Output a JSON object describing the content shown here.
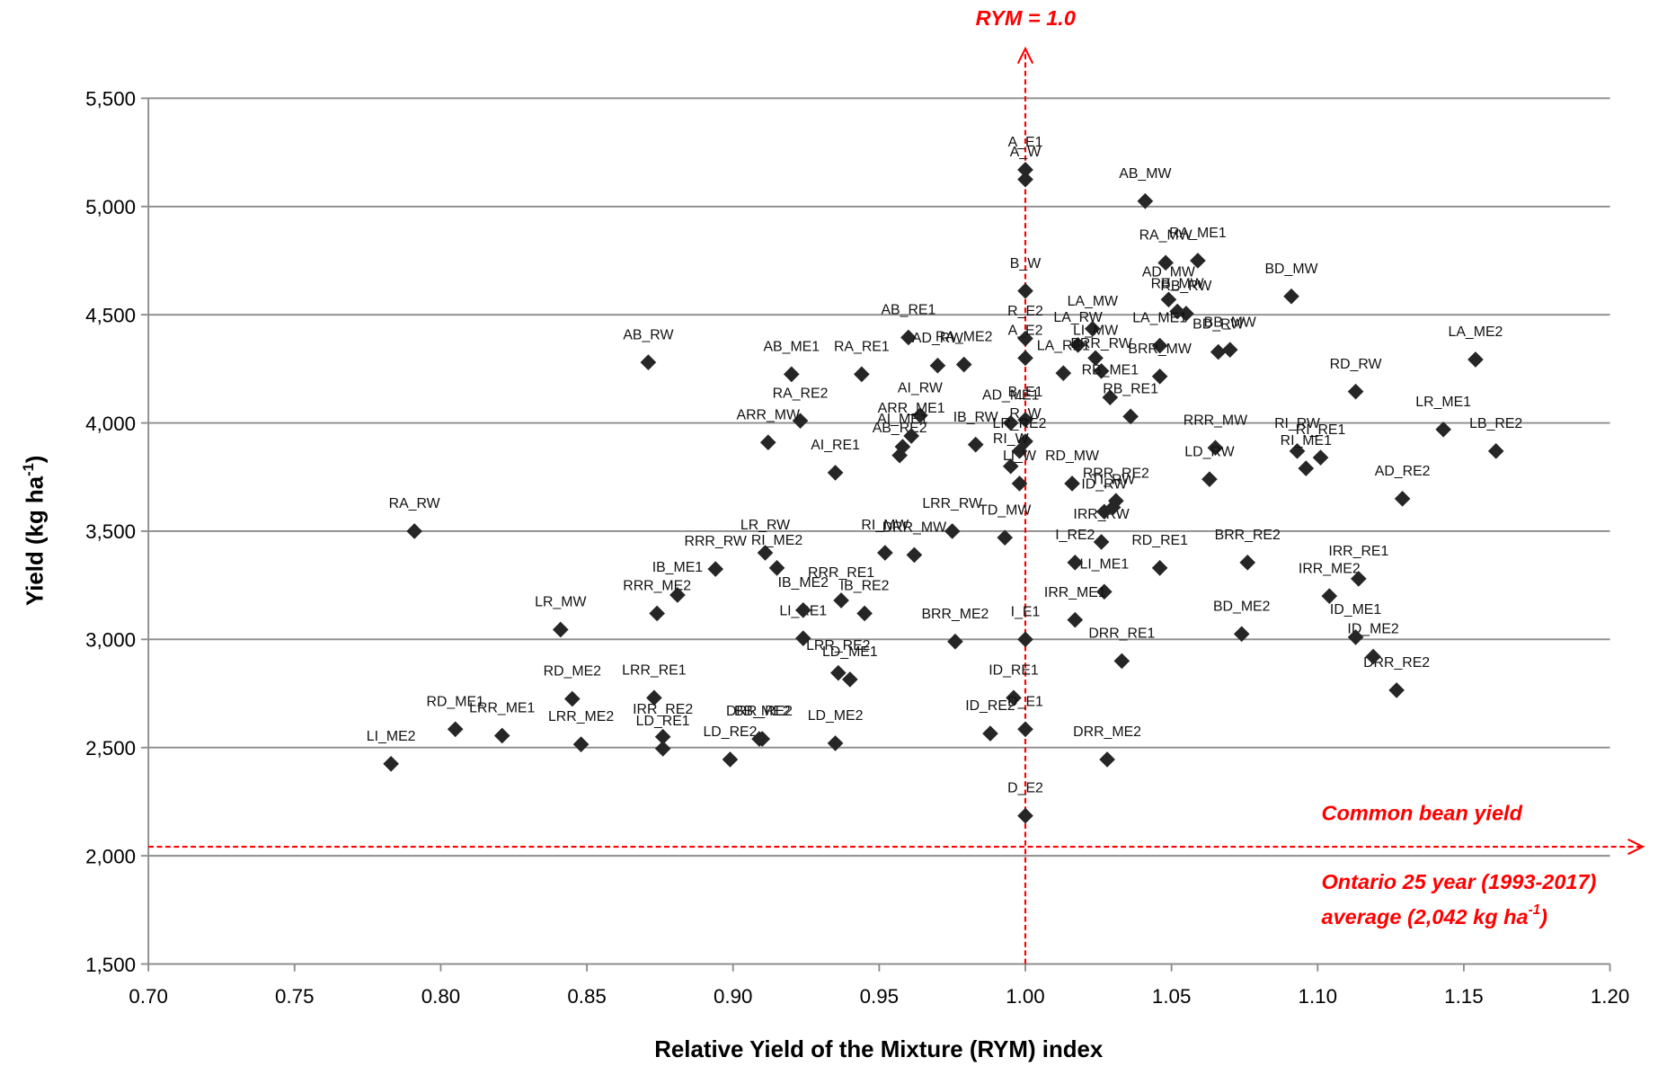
{
  "chart_data": {
    "type": "scatter",
    "x_label": "Relative Yield of the Mixture (RYM) index",
    "y_label": {
      "text": "Yield (kg ha",
      "sup": "-1",
      "end": ")"
    },
    "xlim": [
      0.7,
      1.2
    ],
    "ylim": [
      1500,
      5500
    ],
    "xticks": [
      {
        "value": 0.7,
        "label": "0.70"
      },
      {
        "value": 0.75,
        "label": "0.75"
      },
      {
        "value": 0.8,
        "label": "0.80"
      },
      {
        "value": 0.85,
        "label": "0.85"
      },
      {
        "value": 0.9,
        "label": "0.90"
      },
      {
        "value": 0.95,
        "label": "0.95"
      },
      {
        "value": 1.0,
        "label": "1.00"
      },
      {
        "value": 1.05,
        "label": "1.05"
      },
      {
        "value": 1.1,
        "label": "1.10"
      },
      {
        "value": 1.15,
        "label": "1.15"
      },
      {
        "value": 1.2,
        "label": "1.20"
      }
    ],
    "yticks": [
      {
        "value": 1500,
        "label": "1,500"
      },
      {
        "value": 2000,
        "label": "2,000"
      },
      {
        "value": 2500,
        "label": "2,500"
      },
      {
        "value": 3000,
        "label": "3,000"
      },
      {
        "value": 3500,
        "label": "3,500"
      },
      {
        "value": 4000,
        "label": "4,000"
      },
      {
        "value": 4500,
        "label": "4,500"
      },
      {
        "value": 5000,
        "label": "5,000"
      },
      {
        "value": 5500,
        "label": "5,500"
      }
    ],
    "grid": true,
    "x": [
      1.0,
      1.0,
      1.041,
      1.048,
      1.059,
      1.0,
      1.049,
      1.052,
      1.055,
      1.091,
      1.046,
      1.066,
      1.07,
      1.0,
      1.0,
      1.023,
      1.018,
      1.013,
      1.024,
      1.026,
      1.046,
      1.029,
      1.036,
      1.154,
      0.871,
      0.92,
      0.944,
      0.96,
      0.97,
      0.979,
      1.113,
      0.923,
      0.912,
      0.964,
      1.0,
      1.0,
      1.143,
      1.161,
      1.065,
      1.093,
      1.101,
      1.096,
      1.063,
      1.129,
      0.791,
      0.841,
      0.894,
      0.874,
      0.881,
      0.845,
      0.805,
      0.821,
      0.783,
      0.848,
      0.873,
      0.876,
      0.876,
      0.899,
      0.909,
      0.91,
      0.935,
      0.924,
      0.936,
      0.94,
      0.988,
      1.028,
      1.0,
      1.033,
      1.074,
      1.127,
      1.119,
      1.113,
      1.104,
      1.114,
      1.076,
      1.046,
      1.027,
      1.017,
      1.026,
      1.017,
      1.0,
      0.996,
      1.0,
      0.976,
      0.911,
      0.915,
      0.924,
      0.945,
      0.937,
      0.957,
      0.958,
      0.961,
      0.983,
      0.995,
      0.998,
      0.995,
      0.998,
      1.016,
      0.935,
      1.03,
      1.027,
      1.031,
      0.993,
      0.975,
      0.952,
      0.962
    ],
    "series": [
      {
        "color": "#262626",
        "values": [
          5170,
          5125,
          5025,
          4740,
          4750,
          4610,
          4570,
          4515,
          4505,
          4585,
          4357,
          4328,
          4338,
          4390,
          4300,
          4435,
          4360,
          4230,
          4300,
          4240,
          4215,
          4118,
          4030,
          4293,
          4280,
          4225,
          4225,
          4395,
          4265,
          4270,
          4145,
          4010,
          3910,
          4035,
          4015,
          3915,
          3970,
          3870,
          3885,
          3870,
          3840,
          3790,
          3740,
          3650,
          3500,
          3045,
          3325,
          3120,
          3205,
          2725,
          2585,
          2555,
          2425,
          2515,
          2730,
          2550,
          2495,
          2445,
          2540,
          2540,
          2520,
          3005,
          2845,
          2815,
          2565,
          2445,
          2185,
          2900,
          3025,
          2765,
          2920,
          3010,
          3200,
          3280,
          3355,
          3330,
          3220,
          3355,
          3450,
          3090,
          3000,
          2730,
          2585,
          2990,
          3400,
          3330,
          3135,
          3120,
          3180,
          3850,
          3890,
          3940,
          3900,
          4000,
          3870,
          3800,
          3720,
          3720,
          3770,
          3610,
          3590,
          3640,
          3470,
          3500,
          3400,
          3390
        ],
        "point_labels": [
          "A_E1",
          "A_W",
          "AB_MW",
          "RA_MW",
          "RA_ME1",
          "B_W",
          "AD_MW",
          "RB_MW",
          "RB_RW",
          "BD_MW",
          "LA_ME1",
          "BD_RW",
          "BB_MW",
          "R_E2",
          "A_E2",
          "LA_MW",
          "LA_RW",
          "LA_RE1",
          "LI_MW",
          "BRR_RW",
          "BRR_MW",
          "RB_ME1",
          "RB_RE1",
          "LA_ME2",
          "AB_RW",
          "AB_ME1",
          "RA_RE1",
          "AB_RE1",
          "AD_RW",
          "RA_ME2",
          "RD_RW",
          "RA_RE2",
          "ARR_MW",
          "AI_RW",
          "B_E1",
          "R_W",
          "LR_ME1",
          "LB_RE2",
          "RRR_MW",
          "RI_RW",
          "RI_RE1",
          "RI_ME1",
          "LD_RW",
          "AD_RE2",
          "RA_RW",
          "LR_MW",
          "RRR_RW",
          "RRR_ME2",
          "IB_ME1",
          "RD_ME2",
          "RD_ME1",
          "LRR_ME1",
          "LI_ME2",
          "LRR_ME2",
          "LRR_RE1",
          "IRR_RE2",
          "LD_RE1",
          "LD_RE2",
          "DRR_RE2",
          "BB_ME2",
          "LD_ME2",
          "LI_RE1",
          "LRR_RE2",
          "LD_ME1",
          "ID_RE2",
          "DRR_ME2",
          "D_E2",
          "DRR_RE1",
          "BD_ME2",
          "DRR_RE2",
          "ID_ME2",
          "ID_ME1",
          "IRR_ME2",
          "IRR_RE1",
          "BRR_RE2",
          "RD_RE1",
          "LI_ME1",
          "I_RE2",
          "IRR_RW",
          "IRR_ME1",
          "I_E1",
          "ID_RE1",
          "D_E1",
          "BRR_ME2",
          "LR_RW",
          "RI_ME2",
          "IB_ME2",
          "IB_RE2",
          "RRR_RE1",
          "AB_RE2",
          "AI_ME1",
          "ARR_ME1",
          "IB_RW",
          "AD_ME1",
          "LR_RE2",
          "RI_W",
          "LI_W",
          "RD_MW",
          "AI_RE1",
          "TI_RW",
          "ID_RW",
          "RRR_RE2",
          "TD_MW",
          "LRR_RW",
          "RI_MW",
          "DRR_MW"
        ]
      }
    ],
    "reference_lines": [
      {
        "axis": "x",
        "value": 1.0,
        "color": "#ff0000",
        "label": [
          "RYM = 1.0"
        ]
      },
      {
        "axis": "y",
        "value": 2042,
        "color": "#ff0000",
        "label": [
          "Common bean yield",
          "Ontario 25 year (1993-2017)",
          "average (2,042 kg ha",
          "-1",
          ")"
        ]
      }
    ]
  }
}
